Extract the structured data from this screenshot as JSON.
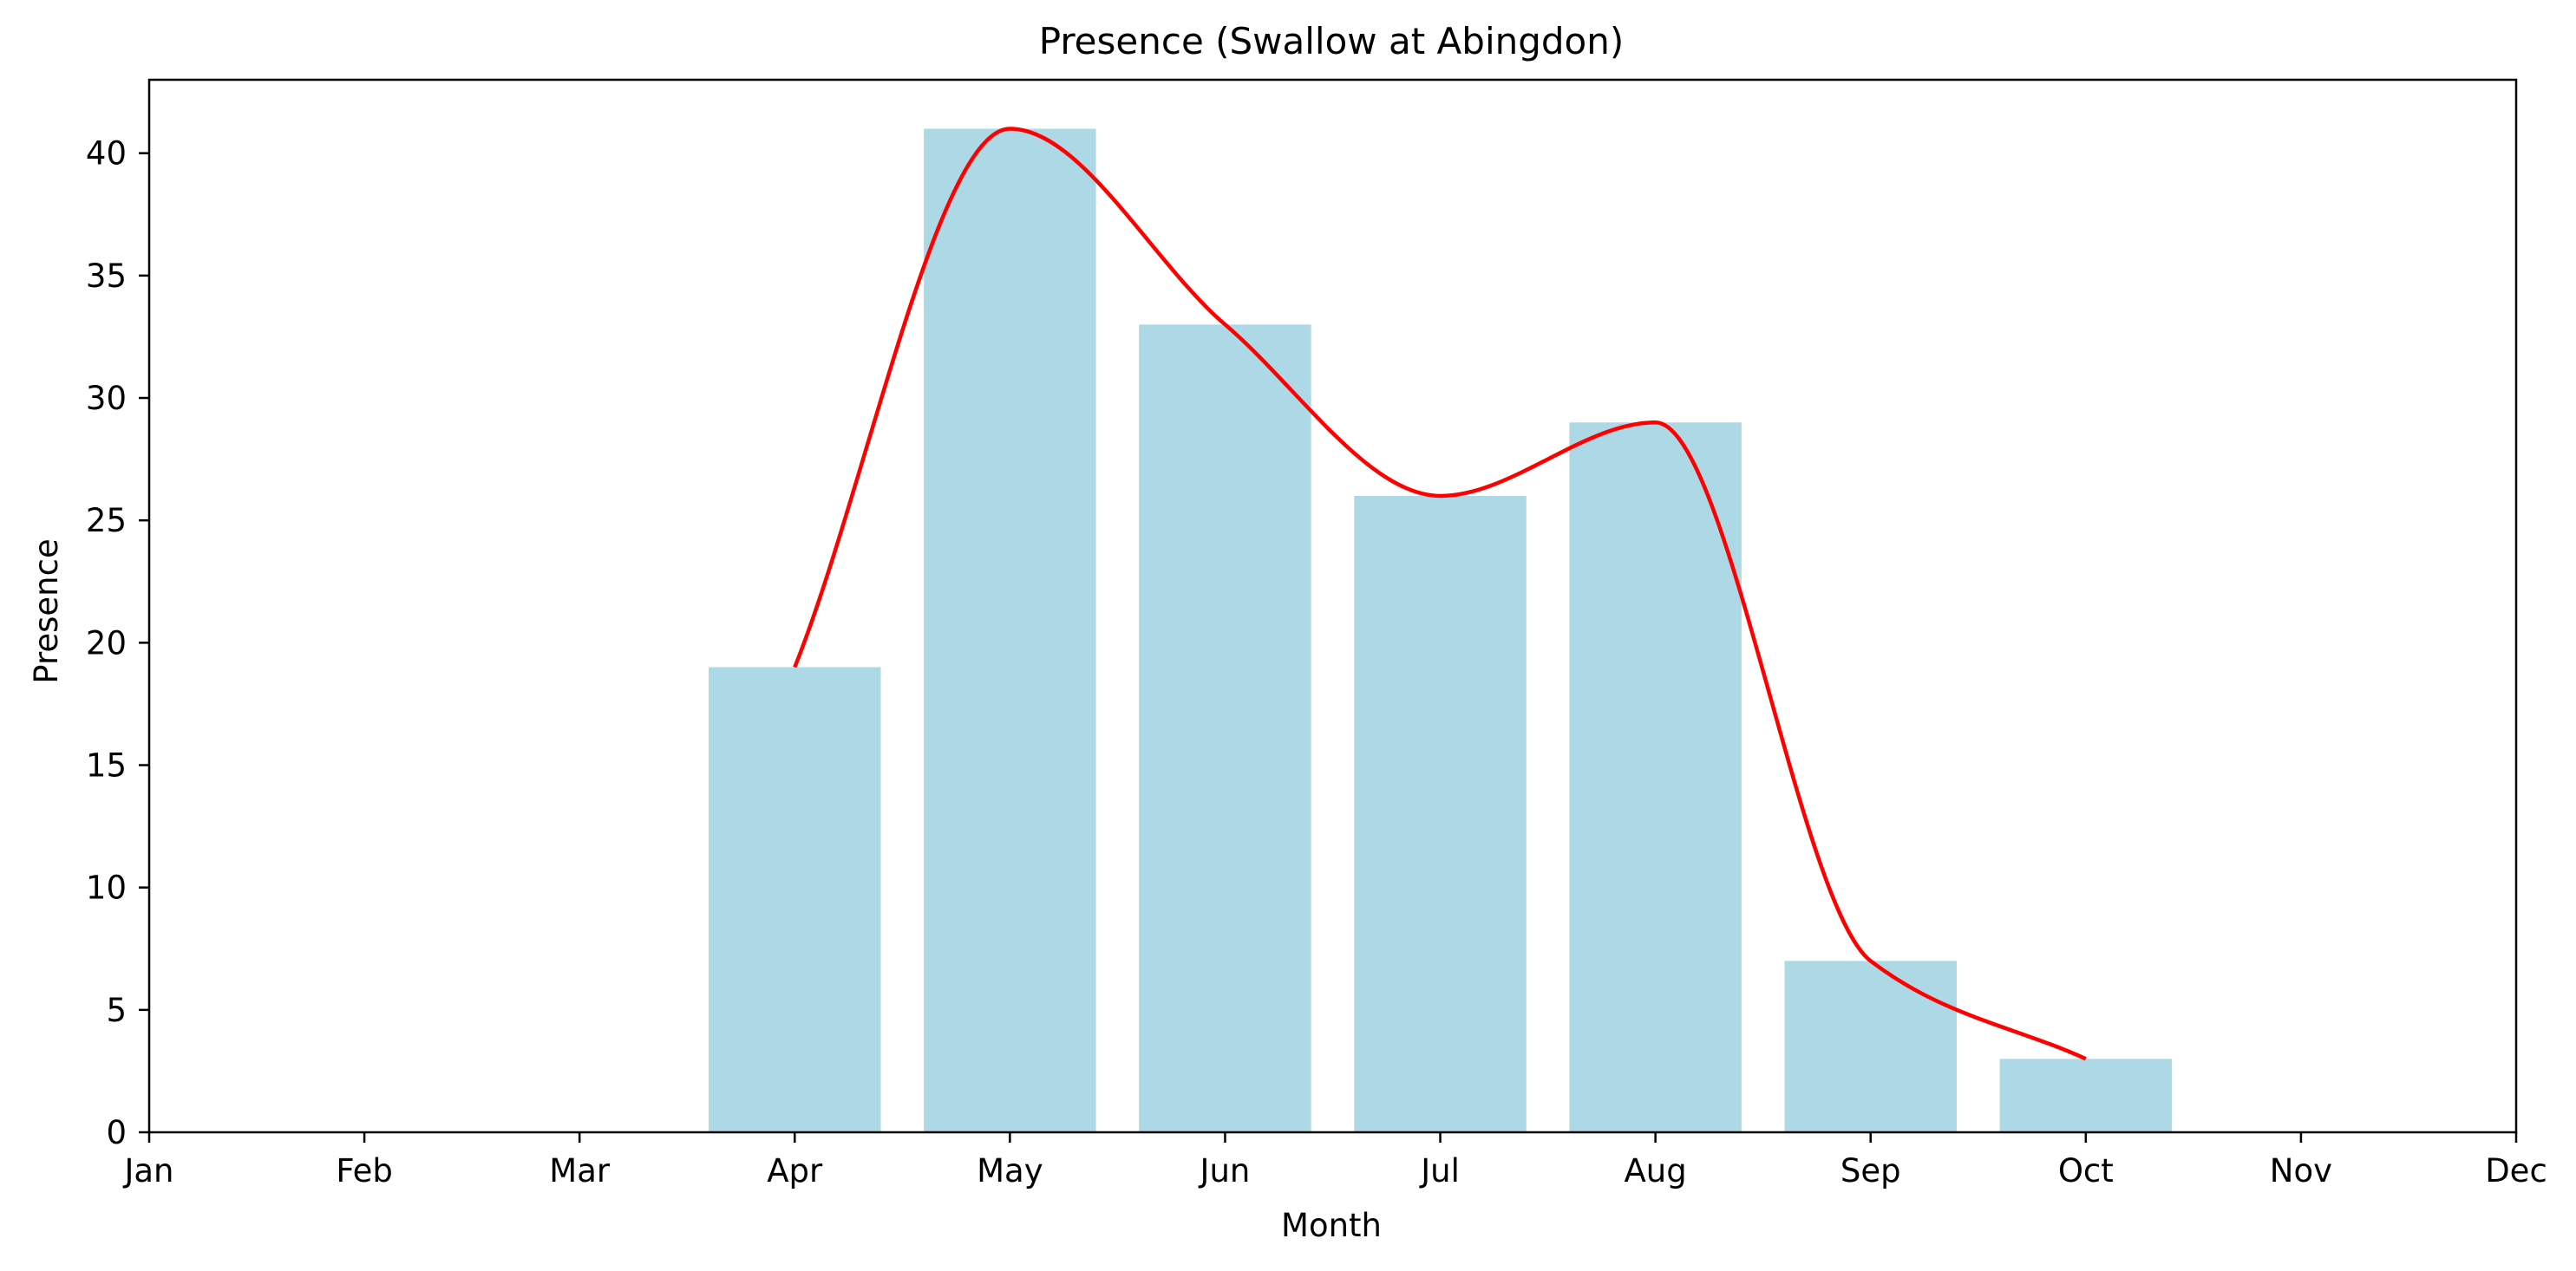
{
  "chart_data": {
    "type": "bar",
    "title": "Presence (Swallow at Abingdon)",
    "xlabel": "Month",
    "ylabel": "Presence",
    "categories": [
      "Jan",
      "Feb",
      "Mar",
      "Apr",
      "May",
      "Jun",
      "Jul",
      "Aug",
      "Sep",
      "Oct",
      "Nov",
      "Dec"
    ],
    "bars": [
      {
        "x": "Apr",
        "value": 19
      },
      {
        "x": "May",
        "value": 41
      },
      {
        "x": "Jun",
        "value": 33
      },
      {
        "x": "Jul",
        "value": 26
      },
      {
        "x": "Aug",
        "value": 29
      },
      {
        "x": "Sep",
        "value": 7
      },
      {
        "x": "Oct",
        "value": 3
      }
    ],
    "trend_line": {
      "x": [
        "Apr",
        "May",
        "Jun",
        "Jul",
        "Aug",
        "Sep",
        "Oct"
      ],
      "values": [
        19,
        41,
        33,
        26,
        29,
        7,
        3
      ]
    },
    "ylim": [
      0,
      43
    ],
    "yticks": [
      0,
      5,
      10,
      15,
      20,
      25,
      30,
      35,
      40
    ],
    "grid": false,
    "legend": "none",
    "colors": {
      "bar": "#add8e6",
      "line": "#ff0000",
      "axis": "#000000"
    }
  }
}
